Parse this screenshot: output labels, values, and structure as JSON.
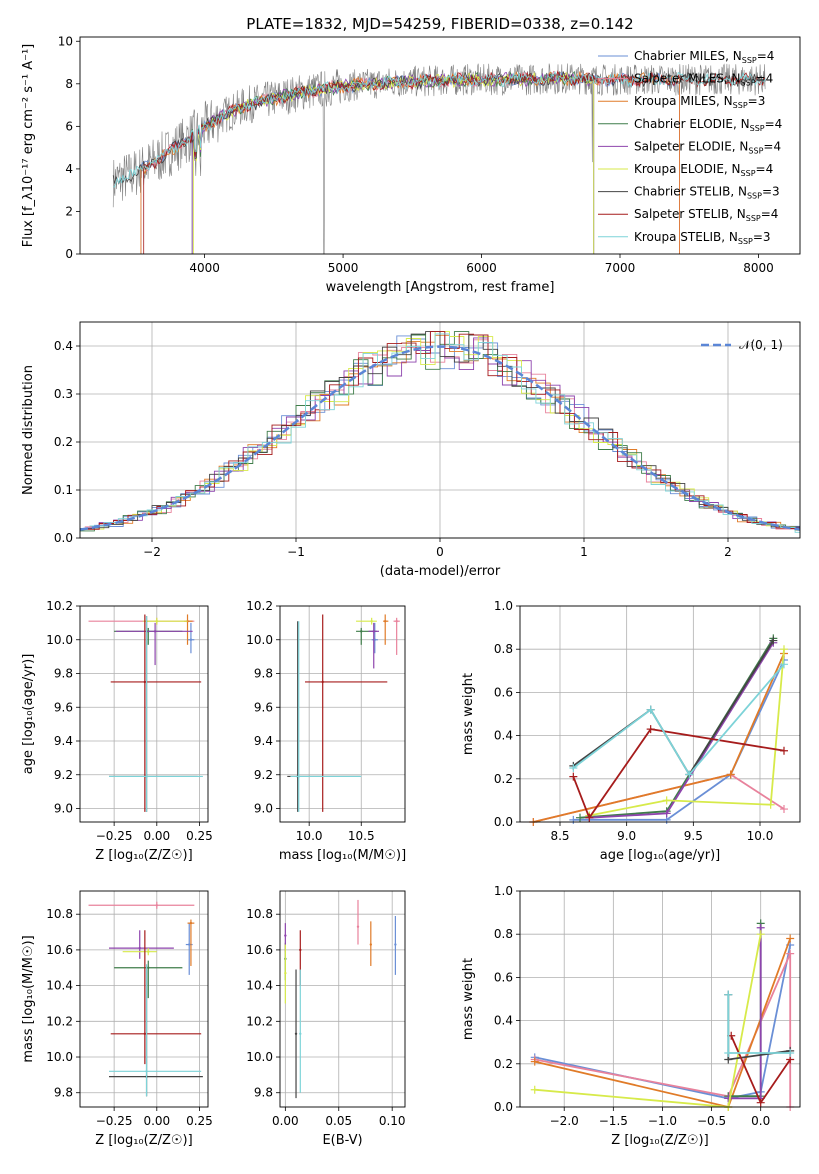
{
  "title": "PLATE=1832, MJD=54259, FIBERID=0338, z=0.142",
  "colors": {
    "Chabrier MILES": "#6a8fd6",
    "Salpeter MILES": "#e8829c",
    "Kroupa MILES": "#e07b28",
    "Chabrier ELODIE": "#3f7d4a",
    "Salpeter ELODIE": "#8e44ad",
    "Kroupa ELODIE": "#d7ea4a",
    "Chabrier STELIB": "#444444",
    "Salpeter STELIB": "#a61c1c",
    "Kroupa STELIB": "#7dd3d8",
    "data": "#808080",
    "normal": "#5b86d6"
  },
  "chart_data": [
    {
      "id": "spectrum",
      "type": "line",
      "title": "PLATE=1832, MJD=54259, FIBERID=0338, z=0.142",
      "xlabel": "wavelength [Angstrom, rest frame]",
      "ylabel": "Flux [f_λ10⁻¹⁷ erg cm⁻² s⁻¹ A⁻¹]",
      "xlim": [
        3100,
        8300
      ],
      "ylim": [
        0,
        10.2
      ],
      "xticks": [
        "4000",
        "5000",
        "6000",
        "7000",
        "8000"
      ],
      "yticks": [
        "0",
        "2",
        "4",
        "6",
        "8",
        "10"
      ],
      "grid": false,
      "legend_position": "right",
      "legend": [
        "Chabrier MILES, N_SSP=4",
        "Salpeter MILES, N_SSP=4",
        "Kroupa MILES, N_SSP=3",
        "Chabrier ELODIE, N_SSP=4",
        "Salpeter ELODIE, N_SSP=4",
        "Kroupa ELODIE, N_SSP=4",
        "Chabrier STELIB, N_SSP=3",
        "Salpeter STELIB, N_SSP=4",
        "Kroupa STELIB, N_SSP=3"
      ],
      "legend_series": [
        "Chabrier MILES",
        "Salpeter MILES",
        "Kroupa MILES",
        "Chabrier ELODIE",
        "Salpeter ELODIE",
        "Kroupa ELODIE",
        "Chabrier STELIB",
        "Salpeter STELIB",
        "Kroupa STELIB"
      ],
      "continuum_x": [
        3340,
        3500,
        3700,
        3900,
        4100,
        4300,
        4500,
        4700,
        4900,
        5100,
        5300,
        5500,
        5700,
        5900,
        6100,
        6300,
        6500,
        6700,
        6900,
        7100,
        7300,
        7500,
        7700,
        7900,
        8050
      ],
      "continuum_y": [
        3.4,
        3.8,
        4.6,
        5.5,
        6.4,
        7.0,
        7.3,
        7.6,
        7.8,
        7.95,
        8.05,
        8.1,
        8.15,
        8.2,
        8.2,
        8.2,
        8.25,
        8.25,
        8.2,
        8.2,
        8.2,
        8.2,
        8.2,
        8.2,
        8.2
      ]
    },
    {
      "id": "residuals",
      "type": "line",
      "xlabel": "(data-model)/error",
      "ylabel": "Normed distribution",
      "xlim": [
        -2.5,
        2.5
      ],
      "ylim": [
        0,
        0.45
      ],
      "xticks": [
        "−2",
        "−1",
        "0",
        "1",
        "2"
      ],
      "yticks": [
        "0.0",
        "0.1",
        "0.2",
        "0.3",
        "0.4"
      ],
      "grid": true,
      "legend": [
        "𝒩(0, 1)"
      ],
      "legend_position": "top-right"
    },
    {
      "id": "age_vs_Z",
      "type": "scatter",
      "xlabel": "Z [log₁₀(Z/Z☉)]",
      "ylabel": "age  [log₁₀(age/yr)]",
      "xlim": [
        -0.45,
        0.3
      ],
      "ylim": [
        8.92,
        10.2
      ],
      "xticks": [
        "−0.25",
        "0.00",
        "0.25"
      ],
      "yticks": [
        "9.0",
        "9.2",
        "9.4",
        "9.6",
        "9.8",
        "10.0",
        "10.2"
      ],
      "grid": true,
      "points": [
        {
          "series": "Chabrier MILES",
          "x": 0.2,
          "y": 10.0,
          "xerr": [
            0.02,
            0.02
          ],
          "yerr": [
            0.08,
            0.1
          ]
        },
        {
          "series": "Salpeter MILES",
          "x": 0.0,
          "y": 10.11,
          "xerr": [
            0.4,
            0.22
          ],
          "yerr": [
            0.02,
            0.02
          ]
        },
        {
          "series": "Kroupa MILES",
          "x": 0.18,
          "y": 10.11,
          "xerr": [
            0.02,
            0.03
          ],
          "yerr": [
            0.14,
            0.04
          ]
        },
        {
          "series": "Chabrier ELODIE",
          "x": -0.05,
          "y": 10.05,
          "xerr": [
            0.2,
            0.2
          ],
          "yerr": [
            0.08,
            0.02
          ]
        },
        {
          "series": "Salpeter ELODIE",
          "x": -0.01,
          "y": 10.05,
          "xerr": [
            0.23,
            0.22
          ],
          "yerr": [
            0.2,
            0.05
          ]
        },
        {
          "series": "Kroupa ELODIE",
          "x": 0.0,
          "y": 10.11,
          "xerr": [
            0.08,
            0.18
          ],
          "yerr": [
            0.02,
            0.02
          ]
        },
        {
          "series": "Chabrier STELIB",
          "x": -0.06,
          "y": 9.19,
          "xerr": [
            0.22,
            0.3
          ],
          "yerr": [
            0.21,
            0.95
          ]
        },
        {
          "series": "Salpeter STELIB",
          "x": -0.07,
          "y": 9.75,
          "xerr": [
            0.2,
            0.33
          ],
          "yerr": [
            0.77,
            0.4
          ]
        },
        {
          "series": "Kroupa STELIB",
          "x": -0.06,
          "y": 9.19,
          "xerr": [
            0.22,
            0.33
          ],
          "yerr": [
            0.21,
            0.95
          ]
        }
      ]
    },
    {
      "id": "age_vs_mass",
      "type": "scatter",
      "xlabel": "mass [log₁₀(M/M☉)]",
      "ylabel": "",
      "xlim": [
        9.72,
        10.92
      ],
      "ylim": [
        8.92,
        10.2
      ],
      "xticks": [
        "10.0",
        "10.5"
      ],
      "yticks": [
        "9.0",
        "9.2",
        "9.4",
        "9.6",
        "9.8",
        "10.0",
        "10.2"
      ],
      "grid": true,
      "points": [
        {
          "series": "Chabrier MILES",
          "x": 10.63,
          "y": 10.0,
          "xerr": [
            0.03,
            0.03
          ],
          "yerr": [
            0.08,
            0.1
          ]
        },
        {
          "series": "Salpeter MILES",
          "x": 10.84,
          "y": 10.11,
          "xerr": [
            0.03,
            0.03
          ],
          "yerr": [
            0.2,
            0.02
          ]
        },
        {
          "series": "Kroupa MILES",
          "x": 10.73,
          "y": 10.11,
          "xerr": [
            0.02,
            0.03
          ],
          "yerr": [
            0.14,
            0.04
          ]
        },
        {
          "series": "Chabrier ELODIE",
          "x": 10.5,
          "y": 10.05,
          "xerr": [
            0.05,
            0.15
          ],
          "yerr": [
            0.08,
            0.02
          ]
        },
        {
          "series": "Salpeter ELODIE",
          "x": 10.62,
          "y": 10.05,
          "xerr": [
            0.05,
            0.05
          ],
          "yerr": [
            0.22,
            0.05
          ]
        },
        {
          "series": "Kroupa ELODIE",
          "x": 10.6,
          "y": 10.11,
          "xerr": [
            0.15,
            0.05
          ],
          "yerr": [
            0.02,
            0.02
          ]
        },
        {
          "series": "Chabrier STELIB",
          "x": 9.89,
          "y": 9.19,
          "xerr": [
            0.1,
            0.6
          ],
          "yerr": [
            0.21,
            0.92
          ]
        },
        {
          "series": "Salpeter STELIB",
          "x": 10.13,
          "y": 9.75,
          "xerr": [
            0.17,
            0.62
          ],
          "yerr": [
            0.77,
            0.4
          ]
        },
        {
          "series": "Kroupa STELIB",
          "x": 9.9,
          "y": 9.19,
          "xerr": [
            0.08,
            0.6
          ],
          "yerr": [
            0.21,
            0.92
          ]
        }
      ]
    },
    {
      "id": "weight_vs_age",
      "type": "line",
      "xlabel": "age  [log₁₀(age/yr)]",
      "ylabel": "mass weight",
      "xlim": [
        8.2,
        10.3
      ],
      "ylim": [
        0,
        1.0
      ],
      "xticks": [
        "8.5",
        "9.0",
        "9.5",
        "10.0"
      ],
      "yticks": [
        "0.0",
        "0.2",
        "0.4",
        "0.6",
        "0.8",
        "1.0"
      ],
      "grid": true,
      "series": [
        {
          "series": "Chabrier MILES",
          "x": [
            8.6,
            9.3,
            9.78,
            10.18
          ],
          "y": [
            0.01,
            0.01,
            0.22,
            0.75
          ]
        },
        {
          "series": "Salpeter MILES",
          "x": [
            8.3,
            9.78,
            10.18
          ],
          "y": [
            0.0,
            0.22,
            0.06
          ]
        },
        {
          "series": "Kroupa MILES",
          "x": [
            8.3,
            9.78,
            10.18
          ],
          "y": [
            0.0,
            0.22,
            0.78
          ]
        },
        {
          "series": "Chabrier ELODIE",
          "x": [
            8.65,
            9.3,
            10.1
          ],
          "y": [
            0.02,
            0.05,
            0.85
          ]
        },
        {
          "series": "Salpeter ELODIE",
          "x": [
            8.72,
            9.3,
            10.1
          ],
          "y": [
            0.02,
            0.04,
            0.83
          ]
        },
        {
          "series": "Kroupa ELODIE",
          "x": [
            8.72,
            9.3,
            10.08,
            10.18
          ],
          "y": [
            0.03,
            0.1,
            0.08,
            0.8
          ]
        },
        {
          "series": "Chabrier STELIB",
          "x": [
            8.6,
            9.18,
            9.47,
            10.1
          ],
          "y": [
            0.26,
            0.52,
            0.22,
            0.84
          ]
        },
        {
          "series": "Salpeter STELIB",
          "x": [
            8.6,
            8.72,
            9.18,
            10.18
          ],
          "y": [
            0.21,
            0.02,
            0.43,
            0.33
          ]
        },
        {
          "series": "Kroupa STELIB",
          "x": [
            8.6,
            9.18,
            9.47,
            10.18
          ],
          "y": [
            0.25,
            0.52,
            0.22,
            0.73
          ]
        }
      ]
    },
    {
      "id": "mass_vs_Z",
      "type": "scatter",
      "xlabel": "Z [log₁₀(Z/Z☉)]",
      "ylabel": "mass [log₁₀(M/M☉)]",
      "xlim": [
        -0.45,
        0.3
      ],
      "ylim": [
        9.72,
        10.93
      ],
      "xticks": [
        "−0.25",
        "0.00",
        "0.25"
      ],
      "yticks": [
        "9.8",
        "10.0",
        "10.2",
        "10.4",
        "10.6",
        "10.8"
      ],
      "grid": true,
      "points": [
        {
          "series": "Chabrier MILES",
          "x": 0.19,
          "y": 10.63,
          "xerr": [
            0.02,
            0.02
          ],
          "yerr": [
            0.17,
            0.12
          ]
        },
        {
          "series": "Salpeter MILES",
          "x": 0.0,
          "y": 10.85,
          "xerr": [
            0.4,
            0.22
          ],
          "yerr": [
            0.02,
            0.02
          ]
        },
        {
          "series": "Kroupa MILES",
          "x": 0.2,
          "y": 10.75,
          "xerr": [
            0.02,
            0.02
          ],
          "yerr": [
            0.24,
            0.02
          ]
        },
        {
          "series": "Chabrier ELODIE",
          "x": -0.05,
          "y": 10.5,
          "xerr": [
            0.2,
            0.2
          ],
          "yerr": [
            0.17,
            0.04
          ]
        },
        {
          "series": "Salpeter ELODIE",
          "x": -0.1,
          "y": 10.61,
          "xerr": [
            0.18,
            0.2
          ],
          "yerr": [
            0.06,
            0.1
          ]
        },
        {
          "series": "Kroupa ELODIE",
          "x": -0.05,
          "y": 10.59,
          "xerr": [
            0.15,
            0.05
          ],
          "yerr": [
            0.02,
            0.02
          ]
        },
        {
          "series": "Chabrier STELIB",
          "x": -0.06,
          "y": 9.89,
          "xerr": [
            0.22,
            0.33
          ],
          "yerr": [
            0.11,
            0.6
          ]
        },
        {
          "series": "Salpeter STELIB",
          "x": -0.07,
          "y": 10.13,
          "xerr": [
            0.2,
            0.33
          ],
          "yerr": [
            0.17,
            0.58
          ]
        },
        {
          "series": "Kroupa STELIB",
          "x": -0.06,
          "y": 9.92,
          "xerr": [
            0.22,
            0.32
          ],
          "yerr": [
            0.14,
            0.6
          ]
        }
      ]
    },
    {
      "id": "ebv",
      "type": "scatter",
      "xlabel": "E(B-V)",
      "ylabel": "",
      "xlim": [
        -0.005,
        0.112
      ],
      "ylim": [
        9.72,
        10.93
      ],
      "xticks": [
        "0.00",
        "0.05",
        "0.10"
      ],
      "yticks": [
        "9.8",
        "10.0",
        "10.2",
        "10.4",
        "10.6",
        "10.8"
      ],
      "grid": true,
      "points": [
        {
          "series": "Chabrier MILES",
          "x": 0.103,
          "y": 10.63,
          "yerr": [
            0.17,
            0.16
          ]
        },
        {
          "series": "Salpeter MILES",
          "x": 0.068,
          "y": 10.73,
          "yerr": [
            0.1,
            0.15
          ]
        },
        {
          "series": "Kroupa MILES",
          "x": 0.08,
          "y": 10.63,
          "yerr": [
            0.12,
            0.13
          ]
        },
        {
          "series": "Chabrier ELODIE",
          "x": 0.0,
          "y": 10.55,
          "yerr": [
            0.12,
            0.09
          ]
        },
        {
          "series": "Salpeter ELODIE",
          "x": 0.0,
          "y": 10.68,
          "yerr": [
            0.09,
            0.07
          ]
        },
        {
          "series": "Kroupa ELODIE",
          "x": 0.0,
          "y": 10.47,
          "yerr": [
            0.17,
            0.16
          ]
        },
        {
          "series": "Chabrier STELIB",
          "x": 0.01,
          "y": 10.13,
          "yerr": [
            0.36,
            0.36
          ]
        },
        {
          "series": "Salpeter STELIB",
          "x": 0.014,
          "y": 10.6,
          "yerr": [
            0.2,
            0.11
          ]
        },
        {
          "series": "Kroupa STELIB",
          "x": 0.014,
          "y": 10.13,
          "yerr": [
            0.33,
            0.36
          ]
        }
      ]
    },
    {
      "id": "weight_vs_Z",
      "type": "line",
      "xlabel": "Z [log₁₀(Z/Z☉)]",
      "ylabel": "mass weight",
      "xlim": [
        -2.45,
        0.4
      ],
      "ylim": [
        0,
        1.0
      ],
      "xticks": [
        "−2.0",
        "−1.5",
        "−1.0",
        "−0.5",
        "0.0"
      ],
      "yticks": [
        "0.0",
        "0.2",
        "0.4",
        "0.6",
        "0.8",
        "1.0"
      ],
      "grid": true,
      "series": [
        {
          "series": "Chabrier MILES",
          "x": [
            -2.3,
            -0.33,
            0.0,
            0.3
          ],
          "y": [
            0.23,
            0.04,
            0.07,
            0.75
          ]
        },
        {
          "series": "Salpeter MILES",
          "x": [
            -2.3,
            -0.33,
            0.3,
            0.3
          ],
          "y": [
            0.22,
            0.05,
            0.71,
            0.0
          ]
        },
        {
          "series": "Kroupa MILES",
          "x": [
            -2.3,
            -0.33,
            0.3
          ],
          "y": [
            0.21,
            0.0,
            0.78
          ]
        },
        {
          "series": "Chabrier ELODIE",
          "x": [
            -0.33,
            0.0,
            0.0
          ],
          "y": [
            0.05,
            0.05,
            0.85
          ]
        },
        {
          "series": "Salpeter ELODIE",
          "x": [
            -0.33,
            0.0,
            0.0
          ],
          "y": [
            0.04,
            0.04,
            0.83
          ]
        },
        {
          "series": "Kroupa ELODIE",
          "x": [
            -2.3,
            -0.33,
            0.0
          ],
          "y": [
            0.08,
            0.0,
            0.8
          ]
        },
        {
          "series": "Chabrier STELIB",
          "x": [
            -0.33,
            -0.33,
            0.3
          ],
          "y": [
            0.52,
            0.22,
            0.26
          ]
        },
        {
          "series": "Salpeter STELIB",
          "x": [
            -0.3,
            0.0,
            0.3
          ],
          "y": [
            0.33,
            0.02,
            0.22
          ]
        },
        {
          "series": "Kroupa STELIB",
          "x": [
            -0.33,
            -0.33,
            0.3
          ],
          "y": [
            0.52,
            0.25,
            0.25
          ]
        }
      ]
    }
  ]
}
